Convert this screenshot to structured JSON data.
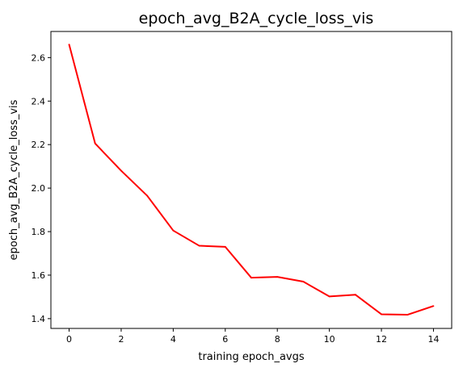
{
  "chart_data": {
    "type": "line",
    "title": "epoch_avg_B2A_cycle_loss_vis",
    "xlabel": "training epoch_avgs",
    "ylabel": "epoch_avg_B2A_cycle_loss_vis",
    "x": [
      0,
      1,
      2,
      3,
      4,
      5,
      6,
      7,
      8,
      9,
      10,
      11,
      12,
      13,
      14
    ],
    "series": [
      {
        "color": "#ff0000",
        "values": [
          2.66,
          2.205,
          2.08,
          1.965,
          1.805,
          1.735,
          1.73,
          1.588,
          1.592,
          1.57,
          1.502,
          1.51,
          1.42,
          1.418,
          1.458
        ]
      }
    ],
    "xlim": [
      -0.7,
      14.7
    ],
    "ylim": [
      1.355,
      2.72
    ],
    "xticks": [
      "0",
      "2",
      "4",
      "6",
      "8",
      "10",
      "12",
      "14"
    ],
    "yticks": [
      "1.4",
      "1.6",
      "1.8",
      "2.0",
      "2.2",
      "2.4",
      "2.6"
    ],
    "grid": false,
    "legend": "none"
  }
}
